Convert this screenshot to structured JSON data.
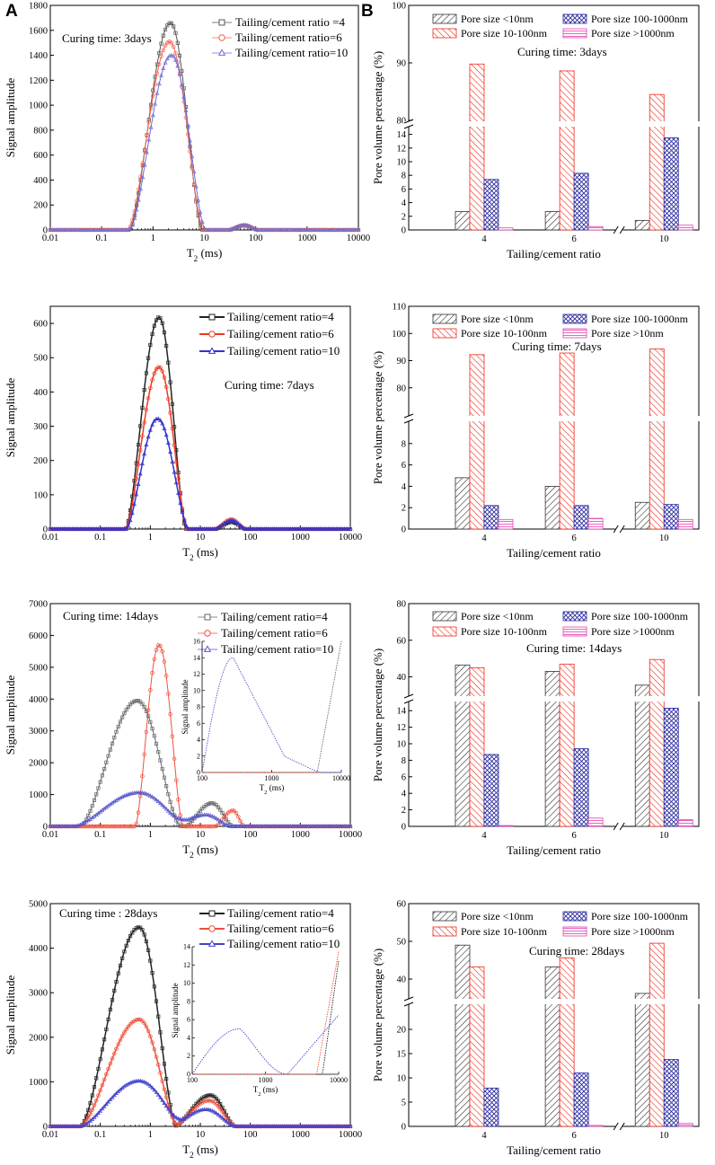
{
  "panel_labels": {
    "a": "A",
    "b": "B"
  },
  "chart_data": [
    {
      "type": "line",
      "panel": "A",
      "title": "",
      "annotation": "Curing time: 3days",
      "xlabel": "T2 (ms)",
      "ylabel": "Signal amplitude",
      "xscale": "log",
      "xlim": [
        0.01,
        10000
      ],
      "ylim": [
        0,
        1800
      ],
      "yticks": [
        0,
        200,
        400,
        600,
        800,
        1000,
        1200,
        1400,
        1600,
        1800
      ],
      "xticklabels": [
        "0.01",
        "0.1",
        "1",
        "10",
        "100",
        "1000",
        "10000"
      ],
      "legend_style": "plain",
      "series": [
        {
          "name": "Tailing/cement ratio =4",
          "color": "#555555",
          "marker": "square",
          "peaks": [
            {
              "center": 2.2,
              "amp": 1660,
              "lo": 0.35,
              "hi": 9.0
            },
            {
              "center": 60,
              "amp": 35,
              "lo": 30,
              "hi": 110
            }
          ]
        },
        {
          "name": "Tailing/cement ratio=6",
          "color": "#f4624b",
          "marker": "circle",
          "peaks": [
            {
              "center": 2.1,
              "amp": 1510,
              "lo": 0.33,
              "hi": 9.5
            },
            {
              "center": 60,
              "amp": 38,
              "lo": 30,
              "hi": 110
            }
          ]
        },
        {
          "name": "Tailing/cement ratio=10",
          "color": "#6e6ed6",
          "marker": "triangle",
          "peaks": [
            {
              "center": 2.3,
              "amp": 1400,
              "lo": 0.35,
              "hi": 10.5
            },
            {
              "center": 60,
              "amp": 40,
              "lo": 30,
              "hi": 110
            }
          ]
        }
      ]
    },
    {
      "type": "bar",
      "panel": "B",
      "annotation": "Curing time: 3days",
      "xlabel": "Tailing/cement ratio",
      "ylabel": "Pore volume percentage (%)",
      "categories": [
        "4",
        "6",
        "10"
      ],
      "axis_break": {
        "lower": [
          0,
          15
        ],
        "upper": [
          80,
          100
        ]
      },
      "lower_ticks": [
        0,
        2,
        4,
        6,
        8,
        10,
        12,
        14
      ],
      "upper_ticks": [
        80,
        90,
        100
      ],
      "series": [
        {
          "name": "Pore size <10nm",
          "values": [
            2.7,
            2.7,
            1.4
          ]
        },
        {
          "name": "Pore size 10-100nm",
          "values": [
            89.8,
            88.6,
            84.5
          ]
        },
        {
          "name": "Pore size 100-1000nm",
          "values": [
            7.4,
            8.3,
            13.5
          ]
        },
        {
          "name": "Pore size >1000nm",
          "values": [
            0.3,
            0.5,
            0.7
          ]
        }
      ]
    },
    {
      "type": "line",
      "panel": "A",
      "annotation": "Curing time: 7days",
      "xlabel": "T2 (ms)",
      "ylabel": "Signal amplitude",
      "xscale": "log",
      "xlim": [
        0.01,
        10000
      ],
      "ylim": [
        0,
        650
      ],
      "yticks": [
        0,
        100,
        200,
        300,
        400,
        500,
        600
      ],
      "xticklabels": [
        "0.01",
        "0.1",
        "1",
        "10",
        "100",
        "1000",
        "10000"
      ],
      "legend_style": "line",
      "series": [
        {
          "name": "Tailing/cement ratio=4",
          "color": "#222222",
          "marker": "square",
          "peaks": [
            {
              "center": 1.5,
              "amp": 618,
              "lo": 0.32,
              "hi": 5.2
            },
            {
              "center": 42,
              "amp": 20,
              "lo": 20,
              "hi": 80
            }
          ]
        },
        {
          "name": "Tailing/cement ratio=6",
          "color": "#ee3a22",
          "marker": "circle",
          "peaks": [
            {
              "center": 1.5,
              "amp": 473,
              "lo": 0.32,
              "hi": 5.5
            },
            {
              "center": 42,
              "amp": 28,
              "lo": 20,
              "hi": 80
            }
          ]
        },
        {
          "name": "Tailing/cement ratio=10",
          "color": "#3333cc",
          "marker": "triangle",
          "peaks": [
            {
              "center": 1.4,
              "amp": 322,
              "lo": 0.33,
              "hi": 5.8
            },
            {
              "center": 42,
              "amp": 25,
              "lo": 20,
              "hi": 80
            }
          ]
        }
      ]
    },
    {
      "type": "bar",
      "panel": "B",
      "annotation": "Curing time: 7days",
      "xlabel": "Tailing/cement ratio",
      "ylabel": "Pore volume percentage (%)",
      "categories": [
        "4",
        "6",
        "10"
      ],
      "axis_break": {
        "lower": [
          0,
          10
        ],
        "upper": [
          70,
          110
        ]
      },
      "lower_ticks": [
        0,
        2,
        4,
        6,
        8
      ],
      "upper_ticks": [
        80,
        90,
        100,
        110
      ],
      "series": [
        {
          "name": "Pore size <10nm",
          "values": [
            4.8,
            4.0,
            2.5
          ]
        },
        {
          "name": "Pore size 10-100nm",
          "values": [
            92.2,
            92.8,
            94.3
          ]
        },
        {
          "name": "Pore size 100-1000nm",
          "values": [
            2.2,
            2.2,
            2.3
          ]
        },
        {
          "name": "Pore size >10nm",
          "values": [
            0.9,
            1.0,
            0.9
          ]
        }
      ]
    },
    {
      "type": "line",
      "panel": "A",
      "annotation": "Curing time: 14days",
      "xlabel": "T2 (ms)",
      "ylabel": "Signal amplitude",
      "xscale": "log",
      "xlim": [
        0.01,
        10000
      ],
      "ylim": [
        0,
        7000
      ],
      "yticks": [
        0,
        1000,
        2000,
        3000,
        4000,
        5000,
        6000,
        7000
      ],
      "xticklabels": [
        "0.01",
        "0.1",
        "1",
        "10",
        "100",
        "1000",
        "10000"
      ],
      "legend_style": "plain",
      "series": [
        {
          "name": "Tailing/cement ratio=4",
          "color": "#666666",
          "marker": "square",
          "peaks": [
            {
              "center": 0.55,
              "amp": 3950,
              "lo": 0.04,
              "hi": 4.0
            },
            {
              "center": 17,
              "amp": 730,
              "lo": 5,
              "hi": 45
            }
          ]
        },
        {
          "name": "Tailing/cement ratio=6",
          "color": "#f0503a",
          "marker": "circle",
          "peaks": [
            {
              "center": 1.5,
              "amp": 5700,
              "lo": 0.5,
              "hi": 4.5
            },
            {
              "center": 45,
              "amp": 500,
              "lo": 20,
              "hi": 75
            }
          ]
        },
        {
          "name": "Tailing/cement ratio=10",
          "color": "#5555cc",
          "marker": "triangle",
          "peaks": [
            {
              "center": 0.6,
              "amp": 1060,
              "lo": 0.03,
              "hi": 6.0
            },
            {
              "center": 13,
              "amp": 360,
              "lo": 2.5,
              "hi": 40
            }
          ]
        }
      ],
      "inset": {
        "xlabel": "T2 (ms)",
        "ylabel": "Signal amplitude",
        "xlim": [
          100,
          10000
        ],
        "ylim": [
          0,
          16
        ],
        "yticks": [
          0,
          2,
          4,
          6,
          8,
          10,
          12,
          14,
          16
        ],
        "xticklabels": [
          "100",
          "1000",
          "10000"
        ]
      }
    },
    {
      "type": "bar",
      "panel": "B",
      "annotation": "Curing time: 14days",
      "xlabel": "Tailing/cement ratio",
      "ylabel": "Pore volume percentage (%)",
      "categories": [
        "4",
        "6",
        "10"
      ],
      "axis_break": {
        "lower": [
          0,
          15
        ],
        "upper": [
          30,
          80
        ]
      },
      "lower_ticks": [
        0,
        2,
        4,
        6,
        8,
        10,
        12,
        14
      ],
      "upper_ticks": [
        40,
        60,
        80
      ],
      "series": [
        {
          "name": "Pore size <10nm",
          "values": [
            46.5,
            43.0,
            35.5
          ]
        },
        {
          "name": "Pore size 10-100nm",
          "values": [
            45.0,
            47.0,
            49.5
          ]
        },
        {
          "name": "Pore size 100-1000nm",
          "values": [
            8.7,
            9.4,
            14.3
          ]
        },
        {
          "name": "Pore size >1000nm",
          "values": [
            0.1,
            1.0,
            0.8
          ]
        }
      ]
    },
    {
      "type": "line",
      "panel": "A",
      "annotation": "Curing time : 28days",
      "xlabel": "T2 (ms)",
      "ylabel": "Signal amplitude",
      "xscale": "log",
      "xlim": [
        0.01,
        10000
      ],
      "ylim": [
        0,
        5000
      ],
      "yticks": [
        0,
        1000,
        2000,
        3000,
        4000,
        5000
      ],
      "xticklabels": [
        "0.01",
        "0.1",
        "1",
        "10",
        "100",
        "1000",
        "10000"
      ],
      "legend_style": "line",
      "series": [
        {
          "name": "Tailing/cement ratio=4",
          "color": "#222222",
          "marker": "square",
          "peaks": [
            {
              "center": 0.6,
              "amp": 4470,
              "lo": 0.04,
              "hi": 3.3
            },
            {
              "center": 16,
              "amp": 700,
              "lo": 3,
              "hi": 50
            }
          ]
        },
        {
          "name": "Tailing/cement ratio=6",
          "color": "#f0503a",
          "marker": "circle",
          "peaks": [
            {
              "center": 0.6,
              "amp": 2400,
              "lo": 0.04,
              "hi": 3.5
            },
            {
              "center": 15,
              "amp": 580,
              "lo": 3,
              "hi": 50
            }
          ]
        },
        {
          "name": "Tailing/cement ratio=10",
          "color": "#4444cc",
          "marker": "triangle",
          "peaks": [
            {
              "center": 0.6,
              "amp": 1020,
              "lo": 0.04,
              "hi": 5.0
            },
            {
              "center": 13,
              "amp": 380,
              "lo": 2.5,
              "hi": 50
            }
          ]
        }
      ],
      "inset": {
        "xlabel": "T2 (ms)",
        "ylabel": "Signal amplitude",
        "xlim": [
          100,
          10000
        ],
        "ylim": [
          0,
          14
        ],
        "yticks": [
          0,
          2,
          4,
          6,
          8,
          10,
          12,
          14
        ],
        "xticklabels": [
          "100",
          "1000",
          "10000"
        ]
      }
    },
    {
      "type": "bar",
      "panel": "B",
      "annotation": "Curing time: 28days",
      "xlabel": "Tailing/cement ratio",
      "ylabel": "Pore volume percentage (%)",
      "categories": [
        "4",
        "6",
        "10"
      ],
      "axis_break": {
        "lower": [
          0,
          25
        ],
        "upper": [
          35,
          60
        ]
      },
      "lower_ticks": [
        0,
        5,
        10,
        15,
        20
      ],
      "upper_ticks": [
        40,
        50,
        60
      ],
      "series": [
        {
          "name": "Pore size <10nm",
          "values": [
            49.0,
            43.2,
            36.2
          ]
        },
        {
          "name": "Pore size 10-100nm",
          "values": [
            43.2,
            45.6,
            49.5
          ]
        },
        {
          "name": "Pore size 100-1000nm",
          "values": [
            7.9,
            11.0,
            13.8
          ]
        },
        {
          "name": "Pore size >1000nm",
          "values": [
            0.0,
            0.2,
            0.6
          ]
        }
      ]
    }
  ]
}
